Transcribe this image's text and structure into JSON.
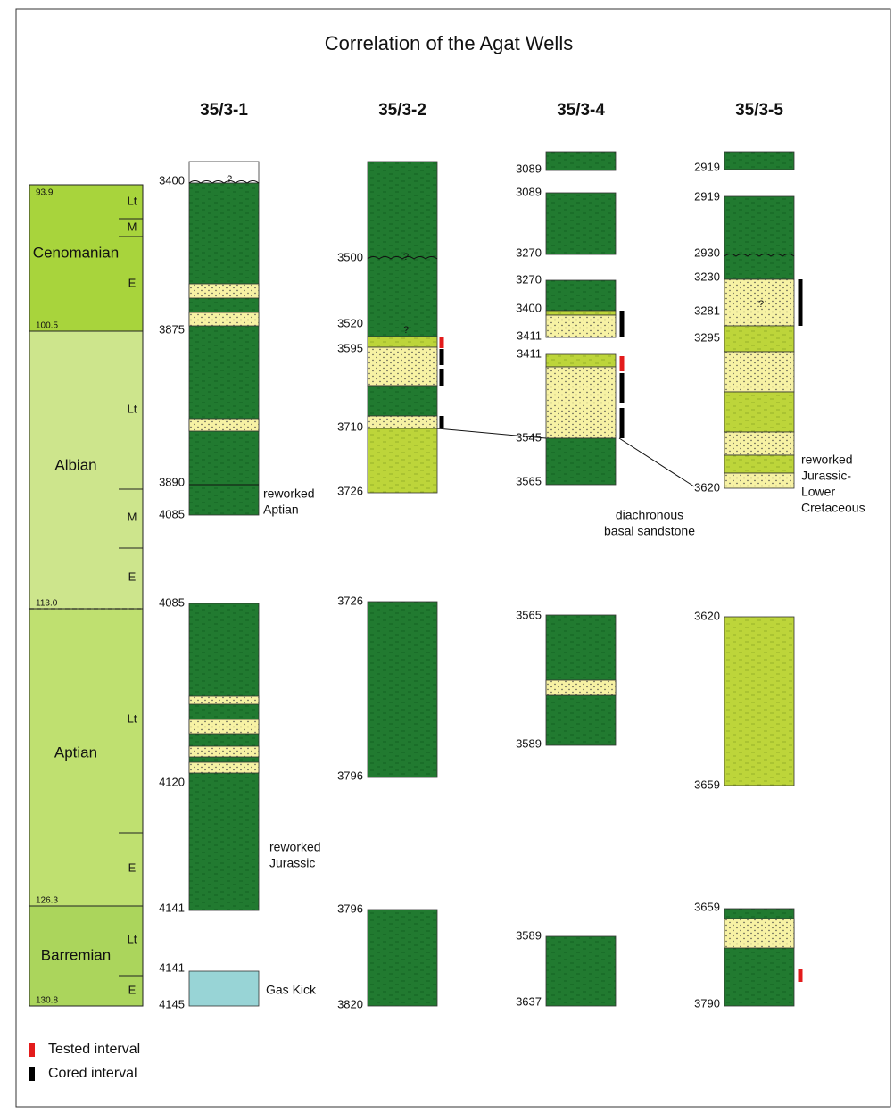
{
  "title": "Correlation of the Agat Wells",
  "stratigraphy": {
    "stages": [
      {
        "name": "Cenomanian",
        "substages": [
          "Lt",
          "M",
          "E"
        ]
      },
      {
        "name": "Albian",
        "substages": [
          "Lt",
          "M",
          "E"
        ]
      },
      {
        "name": "Aptian",
        "substages": [
          "Lt",
          "E"
        ]
      },
      {
        "name": "Barremian",
        "substages": [
          "Lt",
          "E"
        ]
      }
    ],
    "ages": [
      "93.9",
      "100.5",
      "113.0",
      "126.3",
      "130.8"
    ]
  },
  "wells": [
    {
      "name": "35/3-1",
      "depths": [
        "3400",
        "3875",
        "3890",
        "4085",
        "4085",
        "4120",
        "4141",
        "4141",
        "4145"
      ],
      "notes": [
        [
          "reworked",
          "Aptian"
        ],
        [
          "reworked",
          "Jurassic"
        ],
        [
          "Gas Kick"
        ]
      ]
    },
    {
      "name": "35/3-2",
      "depths": [
        "3500",
        "3520",
        "3595",
        "3710",
        "3726",
        "3726",
        "3796",
        "3796",
        "3820"
      ],
      "notes": []
    },
    {
      "name": "35/3-4",
      "depths": [
        "3089",
        "3089",
        "3270",
        "3270",
        "3400",
        "3411",
        "3411",
        "3545",
        "3565",
        "3565",
        "3589",
        "3589",
        "3637"
      ],
      "notes": [
        [
          "diachronous",
          "basal sandstone"
        ]
      ]
    },
    {
      "name": "35/3-5",
      "depths": [
        "2919",
        "2919",
        "2930",
        "3230",
        "3281",
        "3295",
        "3620",
        "3620",
        "3659",
        "3659",
        "3790"
      ],
      "notes": [
        [
          "reworked",
          "Jurassic-",
          "Lower",
          "Cretaceous"
        ]
      ]
    }
  ],
  "uncertain": "?",
  "legend": [
    "Tested interval",
    "Cored interval"
  ]
}
